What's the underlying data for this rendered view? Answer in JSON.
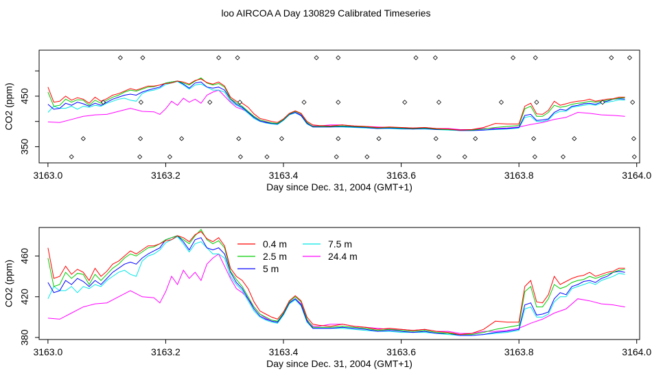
{
  "title": "loo AIRCOA A  Day 130829  Calibrated Timeseries",
  "colors": {
    "0.4 m": "#ff0000",
    "2.5 m": "#00cc00",
    "5 m": "#0000ff",
    "7.5 m": "#00e5e5",
    "24.4 m": "#ff00ff"
  },
  "chart_data": [
    {
      "type": "scatter+line",
      "xlabel": "Day since Dec. 31, 2004 (GMT+1)",
      "ylabel": "CO2 (ppm)",
      "xlim": [
        3162.985,
        3164.005
      ],
      "ylim": [
        318,
        541
      ],
      "x_ticks": [
        "3163.0",
        "3163.2",
        "3163.4",
        "3163.6",
        "3163.8",
        "3164.0"
      ],
      "y_ticks": [
        "350",
        "450"
      ],
      "grid": false,
      "legend": "none",
      "series": [
        {
          "name": "0.4 m",
          "x": [
            3163.0,
            3163.01,
            3163.02,
            3163.03,
            3163.04,
            3163.05,
            3163.06,
            3163.07,
            3163.08,
            3163.09,
            3163.1,
            3163.11,
            3163.12,
            3163.13,
            3163.14,
            3163.15,
            3163.16,
            3163.17,
            3163.18,
            3163.19,
            3163.2,
            3163.21,
            3163.22,
            3163.23,
            3163.24,
            3163.25,
            3163.26,
            3163.27,
            3163.28,
            3163.29,
            3163.3,
            3163.31,
            3163.32,
            3163.33,
            3163.34,
            3163.35,
            3163.36,
            3163.37,
            3163.38,
            3163.39,
            3163.4,
            3163.41,
            3163.42,
            3163.43,
            3163.44,
            3163.45,
            3163.46,
            3163.48,
            3163.5,
            3163.52,
            3163.54,
            3163.56,
            3163.58,
            3163.6,
            3163.62,
            3163.64,
            3163.66,
            3163.68,
            3163.7,
            3163.72,
            3163.74,
            3163.76,
            3163.78,
            3163.8,
            3163.81,
            3163.82,
            3163.83,
            3163.84,
            3163.85,
            3163.86,
            3163.87,
            3163.88,
            3163.89,
            3163.9,
            3163.91,
            3163.92,
            3163.93,
            3163.94,
            3163.95,
            3163.96,
            3163.97,
            3163.98
          ],
          "y": [
            468,
            438,
            440,
            450,
            442,
            447,
            444,
            436,
            448,
            440,
            445,
            452,
            455,
            460,
            465,
            462,
            466,
            470,
            470,
            472,
            475,
            476,
            480,
            478,
            474,
            481,
            484,
            477,
            474,
            478,
            470,
            448,
            440,
            436,
            428,
            415,
            406,
            403,
            400,
            398,
            405,
            416,
            421,
            416,
            400,
            393,
            392,
            391,
            393,
            391,
            390,
            388,
            389,
            388,
            387,
            388,
            386,
            385,
            383,
            384,
            388,
            396,
            395,
            395,
            430,
            436,
            415,
            414,
            422,
            440,
            432,
            435,
            438,
            440,
            441,
            444,
            440,
            442,
            444,
            445,
            448,
            448
          ]
        },
        {
          "name": "2.5 m",
          "x": [
            3163.0,
            3163.01,
            3163.02,
            3163.03,
            3163.04,
            3163.05,
            3163.06,
            3163.07,
            3163.08,
            3163.09,
            3163.1,
            3163.11,
            3163.12,
            3163.13,
            3163.14,
            3163.15,
            3163.16,
            3163.17,
            3163.18,
            3163.19,
            3163.2,
            3163.21,
            3163.22,
            3163.23,
            3163.24,
            3163.25,
            3163.26,
            3163.27,
            3163.28,
            3163.29,
            3163.3,
            3163.31,
            3163.32,
            3163.33,
            3163.34,
            3163.35,
            3163.36,
            3163.37,
            3163.38,
            3163.39,
            3163.4,
            3163.41,
            3163.42,
            3163.43,
            3163.44,
            3163.45,
            3163.46,
            3163.48,
            3163.5,
            3163.52,
            3163.54,
            3163.56,
            3163.58,
            3163.6,
            3163.62,
            3163.64,
            3163.66,
            3163.68,
            3163.7,
            3163.72,
            3163.74,
            3163.76,
            3163.78,
            3163.8,
            3163.81,
            3163.82,
            3163.83,
            3163.84,
            3163.85,
            3163.86,
            3163.87,
            3163.88,
            3163.89,
            3163.9,
            3163.91,
            3163.92,
            3163.93,
            3163.94,
            3163.95,
            3163.96,
            3163.97,
            3163.98
          ],
          "y": [
            458,
            430,
            432,
            444,
            438,
            443,
            442,
            432,
            442,
            436,
            442,
            448,
            452,
            458,
            462,
            460,
            464,
            468,
            469,
            472,
            476,
            478,
            480,
            476,
            472,
            480,
            486,
            476,
            472,
            475,
            468,
            445,
            437,
            430,
            420,
            410,
            403,
            400,
            397,
            396,
            404,
            415,
            420,
            415,
            398,
            390,
            390,
            390,
            391,
            390,
            389,
            387,
            388,
            387,
            386,
            387,
            385,
            384,
            383,
            383,
            385,
            388,
            390,
            392,
            425,
            430,
            410,
            410,
            418,
            432,
            428,
            430,
            434,
            436,
            437,
            440,
            438,
            440,
            442,
            444,
            446,
            447
          ]
        },
        {
          "name": "5 m",
          "x": [
            3163.0,
            3163.01,
            3163.02,
            3163.03,
            3163.04,
            3163.05,
            3163.06,
            3163.07,
            3163.08,
            3163.09,
            3163.1,
            3163.11,
            3163.12,
            3163.13,
            3163.14,
            3163.15,
            3163.16,
            3163.17,
            3163.18,
            3163.19,
            3163.2,
            3163.21,
            3163.22,
            3163.23,
            3163.24,
            3163.25,
            3163.26,
            3163.27,
            3163.28,
            3163.29,
            3163.3,
            3163.31,
            3163.32,
            3163.33,
            3163.34,
            3163.35,
            3163.36,
            3163.37,
            3163.38,
            3163.39,
            3163.4,
            3163.41,
            3163.42,
            3163.43,
            3163.44,
            3163.45,
            3163.46,
            3163.48,
            3163.5,
            3163.52,
            3163.54,
            3163.56,
            3163.58,
            3163.6,
            3163.62,
            3163.64,
            3163.66,
            3163.68,
            3163.7,
            3163.72,
            3163.74,
            3163.76,
            3163.78,
            3163.8,
            3163.81,
            3163.82,
            3163.83,
            3163.84,
            3163.85,
            3163.86,
            3163.87,
            3163.88,
            3163.89,
            3163.9,
            3163.91,
            3163.92,
            3163.93,
            3163.94,
            3163.95,
            3163.96,
            3163.97,
            3163.98
          ],
          "y": [
            434,
            424,
            426,
            436,
            432,
            438,
            435,
            430,
            436,
            432,
            438,
            444,
            448,
            452,
            454,
            452,
            458,
            462,
            465,
            468,
            476,
            478,
            480,
            474,
            466,
            476,
            478,
            468,
            466,
            468,
            462,
            444,
            434,
            428,
            418,
            408,
            401,
            398,
            396,
            395,
            403,
            414,
            418,
            412,
            396,
            389,
            389,
            389,
            390,
            389,
            388,
            386,
            387,
            386,
            385,
            386,
            384,
            384,
            382,
            382,
            383,
            385,
            386,
            388,
            412,
            414,
            402,
            403,
            405,
            418,
            424,
            422,
            430,
            432,
            435,
            436,
            434,
            438,
            440,
            444,
            445,
            444
          ]
        },
        {
          "name": "7.5 m",
          "x": [
            3163.0,
            3163.01,
            3163.02,
            3163.03,
            3163.04,
            3163.05,
            3163.06,
            3163.07,
            3163.08,
            3163.09,
            3163.1,
            3163.11,
            3163.12,
            3163.13,
            3163.14,
            3163.15,
            3163.16,
            3163.17,
            3163.18,
            3163.19,
            3163.2,
            3163.21,
            3163.22,
            3163.23,
            3163.24,
            3163.25,
            3163.26,
            3163.27,
            3163.28,
            3163.29,
            3163.3,
            3163.31,
            3163.32,
            3163.33,
            3163.34,
            3163.35,
            3163.36,
            3163.37,
            3163.38,
            3163.39,
            3163.4,
            3163.41,
            3163.42,
            3163.43,
            3163.44,
            3163.45,
            3163.46,
            3163.48,
            3163.5,
            3163.52,
            3163.54,
            3163.56,
            3163.58,
            3163.6,
            3163.62,
            3163.64,
            3163.66,
            3163.68,
            3163.7,
            3163.72,
            3163.74,
            3163.76,
            3163.78,
            3163.8,
            3163.81,
            3163.82,
            3163.83,
            3163.84,
            3163.85,
            3163.86,
            3163.87,
            3163.88,
            3163.89,
            3163.9,
            3163.91,
            3163.92,
            3163.93,
            3163.94,
            3163.95,
            3163.96,
            3163.97,
            3163.98
          ],
          "y": [
            418,
            430,
            426,
            426,
            430,
            424,
            430,
            428,
            432,
            430,
            436,
            440,
            444,
            446,
            442,
            440,
            455,
            460,
            462,
            466,
            473,
            476,
            479,
            472,
            464,
            472,
            474,
            468,
            462,
            462,
            458,
            440,
            432,
            426,
            416,
            406,
            400,
            397,
            395,
            394,
            402,
            413,
            417,
            411,
            395,
            389,
            389,
            389,
            389,
            388,
            387,
            386,
            386,
            385,
            385,
            385,
            384,
            383,
            382,
            382,
            383,
            384,
            385,
            387,
            408,
            410,
            400,
            400,
            403,
            415,
            420,
            420,
            428,
            430,
            432,
            434,
            432,
            436,
            438,
            440,
            443,
            442
          ]
        },
        {
          "name": "24.4 m",
          "x": [
            3163.0,
            3163.02,
            3163.04,
            3163.06,
            3163.08,
            3163.1,
            3163.12,
            3163.14,
            3163.16,
            3163.18,
            3163.19,
            3163.2,
            3163.21,
            3163.22,
            3163.23,
            3163.24,
            3163.25,
            3163.26,
            3163.27,
            3163.28,
            3163.29,
            3163.3,
            3163.31,
            3163.32,
            3163.33,
            3163.34,
            3163.35,
            3163.36,
            3163.37,
            3163.38,
            3163.39,
            3163.4,
            3163.41,
            3163.42,
            3163.43,
            3163.44,
            3163.45,
            3163.46,
            3163.48,
            3163.5,
            3163.52,
            3163.54,
            3163.56,
            3163.58,
            3163.6,
            3163.62,
            3163.64,
            3163.66,
            3163.68,
            3163.7,
            3163.72,
            3163.74,
            3163.76,
            3163.78,
            3163.8,
            3163.82,
            3163.84,
            3163.86,
            3163.88,
            3163.9,
            3163.92,
            3163.94,
            3163.96,
            3163.98
          ],
          "y": [
            399,
            398,
            404,
            410,
            413,
            414,
            420,
            426,
            420,
            419,
            414,
            425,
            440,
            432,
            446,
            438,
            444,
            436,
            452,
            458,
            462,
            450,
            438,
            428,
            424,
            418,
            410,
            403,
            399,
            396,
            395,
            403,
            414,
            418,
            413,
            397,
            391,
            391,
            393,
            393,
            391,
            390,
            389,
            388,
            388,
            387,
            388,
            386,
            386,
            384,
            384,
            386,
            386,
            387,
            389,
            394,
            398,
            404,
            408,
            418,
            416,
            413,
            412,
            410
          ]
        }
      ],
      "annotations": "diamond markers at ~526 ppm (top) and ~330 ppm (bottom)"
    },
    {
      "type": "line",
      "xlabel": "Day since Dec. 31, 2004 (GMT+1)",
      "ylabel": "CO2 (ppm)",
      "xlim": [
        3162.985,
        3164.005
      ],
      "ylim": [
        378,
        488
      ],
      "x_ticks": [
        "3163.0",
        "3163.2",
        "3163.4",
        "3163.6",
        "3163.8",
        "3164.0"
      ],
      "y_ticks": [
        "380",
        "420",
        "460"
      ],
      "grid": false,
      "legend": "top-center, two columns",
      "legend_labels": [
        "0.4 m",
        "2.5 m",
        "5 m",
        "7.5 m",
        "24.4 m"
      ]
    }
  ]
}
